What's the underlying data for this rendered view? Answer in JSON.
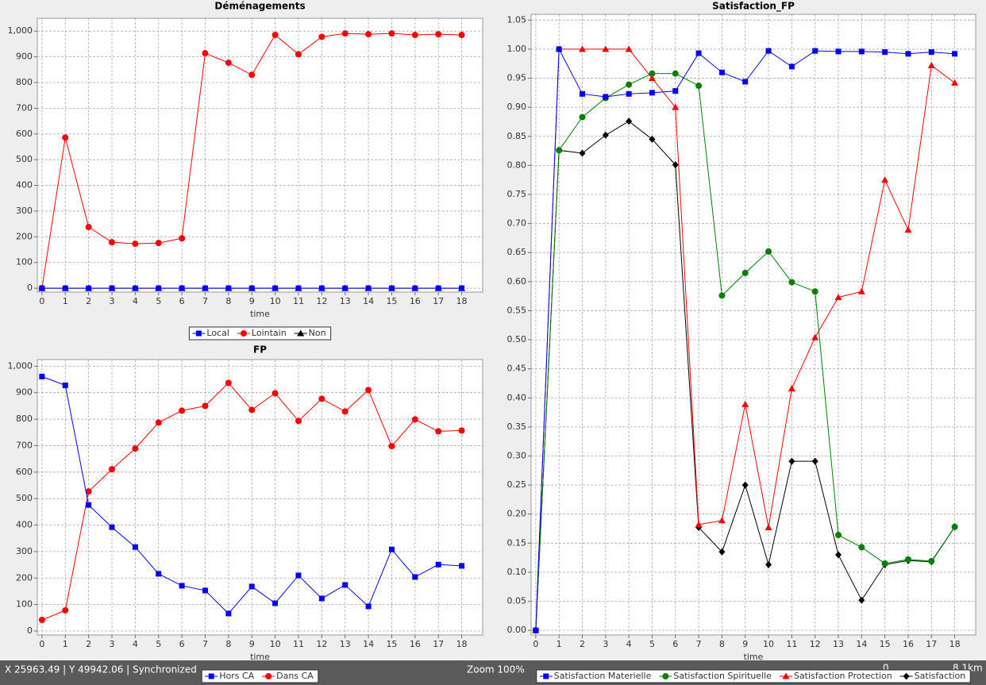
{
  "chart_data": [
    {
      "type": "line",
      "title": "Déménagements",
      "x_label": "time",
      "x": [
        0,
        1,
        2,
        3,
        4,
        5,
        6,
        7,
        8,
        9,
        10,
        11,
        12,
        13,
        14,
        15,
        16,
        17,
        18
      ],
      "xlim": [
        -0.2,
        18.9
      ],
      "xticks": [
        0,
        1,
        2,
        3,
        4,
        5,
        6,
        7,
        8,
        9,
        10,
        11,
        12,
        13,
        14,
        15,
        16,
        17,
        18
      ],
      "ylim": [
        -15,
        1050
      ],
      "yticks": [
        0,
        100,
        200,
        300,
        400,
        500,
        600,
        700,
        800,
        900,
        {
          "value": 1000,
          "label": "1,000"
        }
      ],
      "grid": true,
      "legend": "bottom",
      "series": [
        {
          "name": "Local",
          "color": "#0000ff",
          "marker": "square",
          "values": [
            0,
            0,
            0,
            0,
            0,
            0,
            0,
            0,
            0,
            0,
            0,
            0,
            0,
            0,
            0,
            0,
            0,
            0,
            0
          ]
        },
        {
          "name": "Lointain",
          "color": "#ff0000",
          "marker": "circle",
          "values": [
            0,
            586,
            238,
            179,
            173,
            176,
            194,
            914,
            877,
            830,
            985,
            910,
            978,
            991,
            988,
            991,
            985,
            988,
            985
          ]
        },
        {
          "name": "Non",
          "color": "#000000",
          "marker": "triangle",
          "values": [
            0,
            0,
            0,
            0,
            0,
            0,
            0,
            0,
            0,
            0,
            0,
            0,
            0,
            0,
            0,
            0,
            0,
            0,
            0
          ]
        }
      ]
    },
    {
      "type": "line",
      "title": "FP",
      "x_label": "time",
      "x": [
        0,
        1,
        2,
        3,
        4,
        5,
        6,
        7,
        8,
        9,
        10,
        11,
        12,
        13,
        14,
        15,
        16,
        17,
        18
      ],
      "xlim": [
        -0.2,
        18.9
      ],
      "xticks": [
        0,
        1,
        2,
        3,
        4,
        5,
        6,
        7,
        8,
        9,
        10,
        11,
        12,
        13,
        14,
        15,
        16,
        17,
        18
      ],
      "ylim": [
        -15,
        1025
      ],
      "yticks": [
        0,
        100,
        200,
        300,
        400,
        500,
        600,
        700,
        800,
        900,
        {
          "value": 1000,
          "label": "1,000"
        }
      ],
      "grid": true,
      "legend": "bottom",
      "series": [
        {
          "name": "Hors CA",
          "color": "#0000ff",
          "marker": "square",
          "values": [
            961,
            928,
            476,
            392,
            317,
            216,
            171,
            153,
            66,
            168,
            105,
            210,
            123,
            174,
            93,
            308,
            204,
            251,
            246
          ]
        },
        {
          "name": "Dans CA",
          "color": "#ff0000",
          "marker": "circle",
          "values": [
            42,
            78,
            527,
            611,
            689,
            787,
            832,
            850,
            937,
            835,
            898,
            793,
            877,
            829,
            910,
            698,
            799,
            754,
            757
          ]
        }
      ]
    },
    {
      "type": "line",
      "title": "Satisfaction_FP",
      "x_label": "time",
      "x": [
        0,
        1,
        2,
        3,
        4,
        5,
        6,
        7,
        8,
        9,
        10,
        11,
        12,
        13,
        14,
        15,
        16,
        17,
        18
      ],
      "xlim": [
        -0.2,
        18.9
      ],
      "xticks": [
        0,
        1,
        2,
        3,
        4,
        5,
        6,
        7,
        8,
        9,
        10,
        11,
        12,
        13,
        14,
        15,
        16,
        17,
        18
      ],
      "ylim": [
        -0.008,
        1.06
      ],
      "yticks": [
        {
          "value": 0,
          "label": "0.00"
        },
        0.05,
        {
          "value": 0.1,
          "label": "0.10"
        },
        0.15,
        {
          "value": 0.2,
          "label": "0.20"
        },
        0.25,
        {
          "value": 0.3,
          "label": "0.30"
        },
        0.35,
        {
          "value": 0.4,
          "label": "0.40"
        },
        0.45,
        {
          "value": 0.5,
          "label": "0.50"
        },
        0.55,
        {
          "value": 0.6,
          "label": "0.60"
        },
        0.65,
        {
          "value": 0.7,
          "label": "0.70"
        },
        0.75,
        {
          "value": 0.8,
          "label": "0.80"
        },
        0.85,
        {
          "value": 0.9,
          "label": "0.90"
        },
        0.95,
        {
          "value": 1,
          "label": "1.00"
        },
        1.05
      ],
      "grid": true,
      "legend": "bottom",
      "series": [
        {
          "name": "Satisfaction Materielle",
          "color": "#0000ff",
          "marker": "square",
          "values": [
            0,
            1.0,
            0.923,
            0.918,
            0.923,
            0.925,
            0.928,
            0.993,
            0.96,
            0.944,
            0.997,
            0.97,
            0.997,
            0.996,
            0.996,
            0.995,
            0.992,
            0.995,
            0.992
          ]
        },
        {
          "name": "Satisfaction Spirituelle",
          "color": "#008000",
          "marker": "circle",
          "values": [
            0,
            0.826,
            0.883,
            0.916,
            0.939,
            0.958,
            0.958,
            0.937,
            0.576,
            0.615,
            0.652,
            0.599,
            0.583,
            0.164,
            0.143,
            0.115,
            0.122,
            0.119,
            0.178
          ]
        },
        {
          "name": "Satisfaction Protection",
          "color": "#ff0000",
          "marker": "triangle",
          "values": [
            0,
            1.0,
            1.0,
            1.0,
            1.0,
            0.95,
            0.9,
            0.182,
            0.189,
            0.389,
            0.177,
            0.416,
            0.504,
            0.573,
            0.583,
            0.775,
            0.689,
            0.972,
            0.942
          ]
        },
        {
          "name": "Satisfaction",
          "color": "#000000",
          "marker": "diamond",
          "values": [
            0,
            0.826,
            0.821,
            0.852,
            0.876,
            0.845,
            0.801,
            0.177,
            0.135,
            0.25,
            0.113,
            0.291,
            0.291,
            0.13,
            0.052,
            0.113,
            0.12,
            0.118,
            0.178
          ]
        }
      ]
    }
  ],
  "status_bar": {
    "coordinates": "X  25963.49 | Y  49942.06 | Synchronized",
    "zoom": "Zoom 100%",
    "scale_start": "0",
    "scale_end": "8.1km"
  }
}
